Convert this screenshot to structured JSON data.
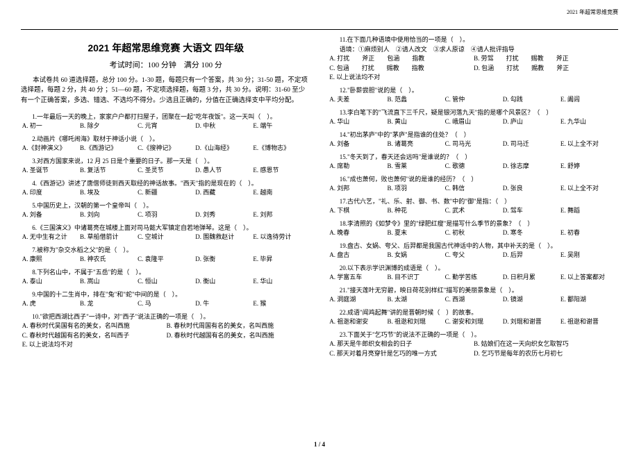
{
  "header": "2021 年超常思维竞赛",
  "title": "2021 年超常思维竞赛  大语文  四年级",
  "subtitle": "考试时间：100 分钟　满分 100 分",
  "intro": "本试卷共 60 道选择题，总分 100 分。1-30 题，每题只有一个答案，共 30 分；31-50 题，不定项选择题，每题 2 分，共 40 分 ；51—60 题，不定项选择题，每题 3 分，共 30 分。说明：31-60 至少有一个正确答案，多选、错选、不选均不得分。少选且正确的，分值在正确选择支中平均分配。",
  "footer": "1 / 4",
  "questions_left": [
    {
      "n": "1.",
      "stem": "一年最后一天的晚上，家家户户都打扫屋子，团聚在一起\"吃年夜饭\"。这一天叫（　）。",
      "opts": [
        "A. 初一",
        "B. 除夕",
        "C. 元宵",
        "D. 中秋",
        "E. 端午"
      ]
    },
    {
      "n": "2.",
      "stem": "动画片《哪吒闹海》取材于神话小说（　）。",
      "opts": [
        "A.《封神演义》",
        "B.《西游记》",
        "C.《搜神记》",
        "D.《山海经》",
        "E.《博物志》"
      ]
    },
    {
      "n": "3.",
      "stem": "对西方国家来说，12 月 25 日是个重要的日子。那一天是（　）。",
      "opts": [
        "A. 圣诞节",
        "B. 复活节",
        "C. 圣灵节",
        "D. 愚人节",
        "E. 感恩节"
      ]
    },
    {
      "n": "4.",
      "stem": "《西游记》讲述了唐僧师徒到西天取经的神话故事。\"西天\"指的是现在的（　）。",
      "opts": [
        "A. 印度",
        "B. 埃及",
        "C. 新疆",
        "D. 西藏",
        "E. 越南"
      ]
    },
    {
      "n": "5.",
      "stem": "中国历史上，汉朝的第一个皇帝叫（　）。",
      "opts": [
        "A. 刘备",
        "B. 刘向",
        "C. 项羽",
        "D. 刘秀",
        "E. 刘邦"
      ]
    },
    {
      "n": "6.",
      "stem": "《三国演义》中诸葛亮在城楼上面对司马懿大军镇定自若地弹琴。这是（　）。",
      "opts": [
        "A. 无中生有之计",
        "B. 草船借箭计",
        "C. 空城计",
        "D. 围魏救赵计",
        "E. 以逸待劳计"
      ]
    },
    {
      "n": "7.",
      "stem": "被称为\"杂交水稻之父\"的是（　）。",
      "opts": [
        "A. 康熙",
        "B. 神农氏",
        "C. 袁隆平",
        "D. 张衡",
        "E. 毕昇"
      ]
    },
    {
      "n": "8.",
      "stem": "下列名山中，不属于\"五岳\"的是（　）。",
      "opts": [
        "A. 泰山",
        "B. 嵩山",
        "C. 恒山",
        "D. 衡山",
        "E. 华山"
      ]
    },
    {
      "n": "9.",
      "stem": "中国的十二生肖中，排在\"兔\"和\"蛇\"中间的是（　）。",
      "opts": [
        "A. 虎",
        "B. 龙",
        "C. 马",
        "D. 牛",
        "E. 猴"
      ]
    },
    {
      "n": "10.",
      "stem": "\"欲把西湖比西子\"一诗中，对\"西子\"说法正确的一项是（　）。",
      "opts": [
        "A. 春秋时代吴国有名的美女，名叫西施",
        "B. 春秋时代周国有名的美女，名叫西施",
        "C. 春秋时代越国有名的美女，名叫西子",
        "D. 春秋时代越国有名的美女，名叫西施",
        "E. 以上说法均不对"
      ],
      "cols": 2,
      "lastFull": true
    }
  ],
  "questions_right": [
    {
      "n": "11.",
      "stem": "在下面几种语境中使用恰当的一项是（　）。",
      "sub": [
        "语境：①麻烦别人　②请人改文　③求人原谅　④请人批评指导"
      ],
      "optsSpecial": [
        "A. 打扰　　斧正　　包涵　　指教",
        "B. 劳驾　　打扰　　赐教　　斧正",
        "C. 包涵　　打扰　　赐教　　指教",
        "D. 包涵　　打扰　　赐教　　斧正",
        "E. 以上说法均不对"
      ],
      "cols": 2,
      "lastFull": true
    },
    {
      "n": "12.",
      "stem": "\"卧薪尝胆\"说的是（　）。",
      "opts": [
        "A. 夫差",
        "B. 范蠡",
        "C. 管仲",
        "D. 勾践",
        "E. 阖闾"
      ]
    },
    {
      "n": "13.",
      "stem": "李白笔下的\"飞流直下三千尺，疑是银河落九天\"指的是哪个风景区？（　）",
      "opts": [
        "A. 华山",
        "B. 黄山",
        "C. 峨眉山",
        "D. 庐山",
        "E. 九华山"
      ]
    },
    {
      "n": "14.",
      "stem": "\"初出茅庐\"中的\"茅庐\"是指谁的住处？（　）",
      "opts": [
        "A. 刘备",
        "B. 诸葛亮",
        "C. 司马光",
        "D. 司马迁",
        "E. 以上全不对"
      ]
    },
    {
      "n": "15.",
      "stem": "\"冬天到了，春天还会远吗\"是谁说的？（　）",
      "opts": [
        "A. 席勒",
        "B. 雪莱",
        "C. 歌德",
        "D. 徐志摩",
        "E. 舒婷"
      ]
    },
    {
      "n": "16.",
      "stem": "\"成也萧何，败也萧何\"说的是谁的经历？（　）",
      "opts": [
        "A. 刘邦",
        "B. 项羽",
        "C. 韩信",
        "D. 张良",
        "E. 以上全不对"
      ]
    },
    {
      "n": "17.",
      "stem": "古代六艺，\"礼、乐、射、御、书、数\"中的\"御\"是指：（　）",
      "opts": [
        "A. 下棋",
        "B. 种花",
        "C. 武术",
        "D. 驾车",
        "E. 舞蹈"
      ]
    },
    {
      "n": "18.",
      "stem": "李清照的《如梦令》里的\"绿肥红瘦\"是描写什么季节的景象？（　）",
      "opts": [
        "A. 晚春",
        "B. 夏末",
        "C. 初秋",
        "D. 寒冬",
        "E. 初春"
      ]
    },
    {
      "n": "19.",
      "stem": "盘古、女娲、夸父、后羿都是我国古代神话中的人物，其中补天的是（　）。",
      "opts": [
        "A. 盘古",
        "B. 女娲",
        "C. 夸父",
        "D. 后羿",
        "E. 吴刚"
      ]
    },
    {
      "n": "20.",
      "stem": "以下表示学识渊博的成语是（　）。",
      "opts": [
        "A. 学富五车",
        "B. 目不识丁",
        "C. 勤学苦练",
        "D. 日积月累",
        "E. 以上答案都对"
      ]
    },
    {
      "n": "21.",
      "stem": "\"接天莲叶无穷碧，映日荷花别样红\"描写的美丽景象是（　）。",
      "opts": [
        "A. 洞庭湖",
        "B. 太湖",
        "C. 西湖",
        "D. 镜湖",
        "E. 鄱阳湖"
      ]
    },
    {
      "n": "22.",
      "stem": "成语\"闻鸡起舞\"讲的是晋朝时候（　）的故事。",
      "opts": [
        "A. 祖逖和谢安",
        "B. 祖逖和刘琨",
        "C. 谢安和刘琨",
        "D. 刘琨和谢晋",
        "E. 祖逖和谢晋"
      ]
    },
    {
      "n": "23.",
      "stem": "下面关于\"乞巧节\"的说法不正确的一项是（　）。",
      "opts": [
        "A. 那天是牛郎织女相会的日子",
        "B. 姑娘们在这一天向织女乞取智巧",
        "C. 那天对着月亮穿针是乞巧的唯一方式",
        "D. 乞巧节是每年的农历七月初七"
      ],
      "cols": 2
    }
  ]
}
